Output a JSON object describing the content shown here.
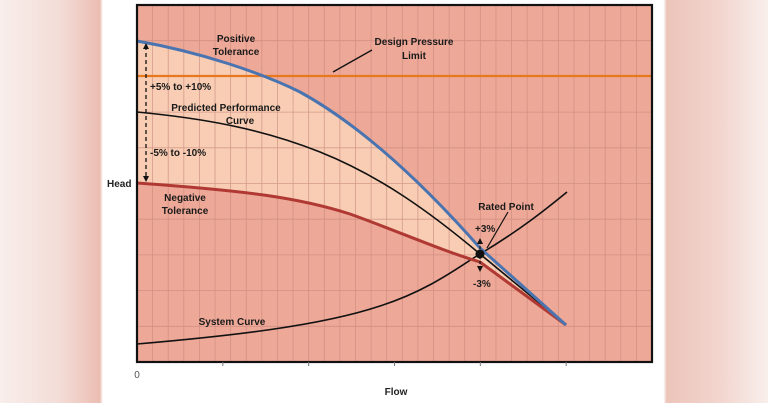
{
  "chart_data": {
    "type": "line",
    "title": "",
    "xlabel": "Flow",
    "ylabel": "Head",
    "x_tick_labels": [
      "0"
    ],
    "grid": true,
    "legend": "none (inline annotations)",
    "x": [
      0,
      1,
      2,
      3,
      4,
      5
    ],
    "ylim": [
      0,
      10
    ],
    "xlim": [
      0,
      6
    ],
    "series": [
      {
        "name": "Positive Tolerance",
        "color": "#4a74b0",
        "points": [
          [
            0,
            9.1
          ],
          [
            1.46,
            8.1
          ],
          [
            2.46,
            6.9
          ],
          [
            3.41,
            4.9
          ],
          [
            4.0,
            3.2
          ],
          [
            5.0,
            1.0
          ]
        ]
      },
      {
        "name": "Predicted Performance Curve",
        "color": "#111111",
        "points": [
          [
            0,
            7.0
          ],
          [
            1.31,
            6.5
          ],
          [
            2.46,
            5.4
          ],
          [
            3.41,
            4.1
          ],
          [
            4.0,
            3.0
          ],
          [
            5.0,
            1.0
          ]
        ]
      },
      {
        "name": "Negative Tolerance",
        "color": "#b03a33",
        "points": [
          [
            0,
            5.0
          ],
          [
            1.31,
            4.7
          ],
          [
            2.46,
            4.1
          ],
          [
            3.41,
            3.3
          ],
          [
            3.94,
            2.8
          ],
          [
            5.0,
            1.0
          ]
        ]
      },
      {
        "name": "System Curve",
        "color": "#111111",
        "points": [
          [
            0,
            0.5
          ],
          [
            1.31,
            0.75
          ],
          [
            2.46,
            1.2
          ],
          [
            3.41,
            2.0
          ],
          [
            4.0,
            3.0
          ],
          [
            5.0,
            4.7
          ]
        ]
      },
      {
        "name": "Design Pressure Limit",
        "color": "#e8781e",
        "points": [
          [
            0,
            8.2
          ],
          [
            6,
            8.2
          ]
        ]
      }
    ],
    "rated_point": {
      "x": 4.0,
      "y": 3.0
    },
    "annotations": [
      "Positive Tolerance",
      "Design Pressure Limit",
      "+5% to +10%",
      "Predicted Performance Curve",
      "-5% to -10%",
      "Negative Tolerance",
      "Rated Point",
      "+3%",
      "-3%",
      "System Curve"
    ]
  },
  "labels": {
    "head": "Head",
    "flow": "Flow",
    "zero": "0",
    "pos_tol_1": "Positive",
    "pos_tol_2": "Tolerance",
    "design_1": "Design Pressure",
    "design_2": "Limit",
    "plus_range": "+5% to +10%",
    "pred_1": "Predicted Performance",
    "pred_2": "Curve",
    "minus_range": "-5% to -10%",
    "neg_1": "Negative",
    "neg_2": "Tolerance",
    "rated": "Rated Point",
    "plus3": "+3%",
    "minus3": "-3%",
    "system": "System Curve"
  },
  "colors": {
    "plot_bg": "#eea897",
    "band_fill": "#f8cdb4",
    "grid": "#c98a7e",
    "positive": "#4a74b0",
    "negative": "#b03a33",
    "design": "#e8781e",
    "line": "#111111"
  }
}
